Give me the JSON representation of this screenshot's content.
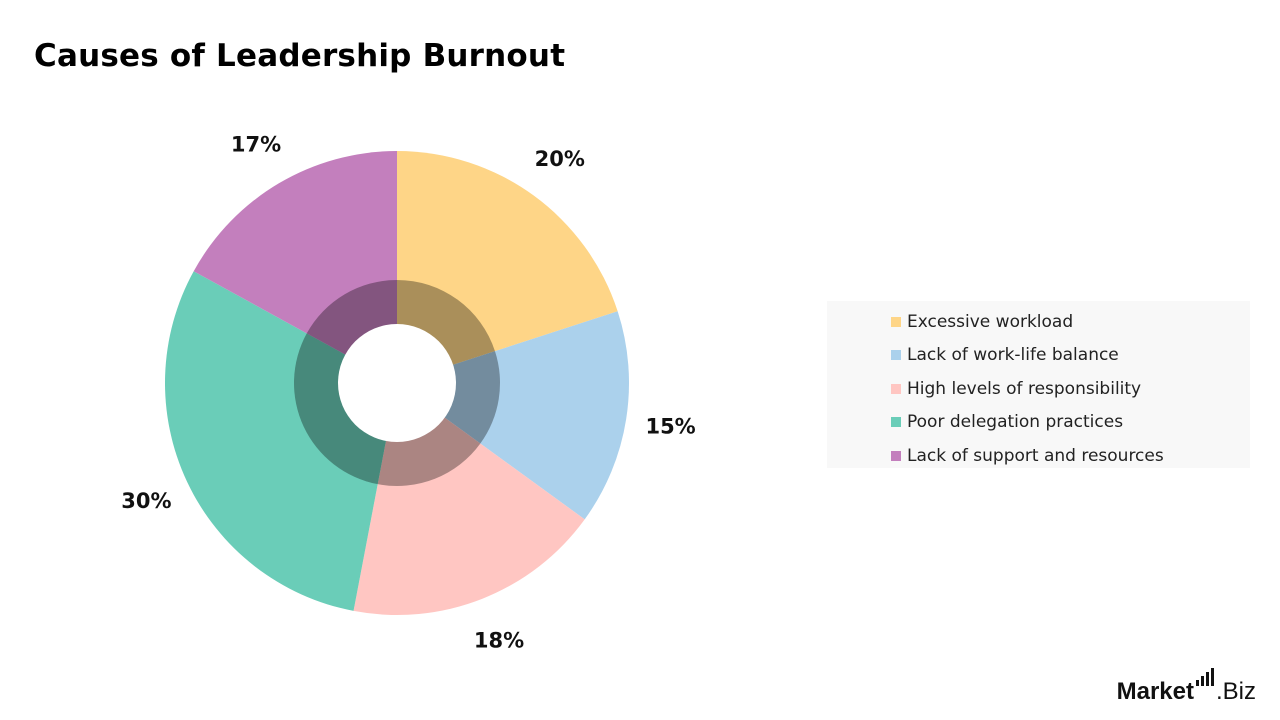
{
  "title": "Causes of Leadership Burnout",
  "chart_data": {
    "type": "pie",
    "title": "Causes of Leadership Burnout",
    "categories": [
      "Excessive workload",
      "Lack of work-life balance",
      "High levels of responsibility",
      "Poor delegation practices",
      "Lack of support and resources"
    ],
    "values": [
      20,
      15,
      18,
      30,
      17
    ],
    "labels": [
      "20%",
      "15%",
      "18%",
      "30%",
      "17%"
    ],
    "colors": [
      "#fed587",
      "#abd1ec",
      "#ffc6c2",
      "#6acdb8",
      "#c37fbd"
    ],
    "legend": "right"
  },
  "brand": {
    "name": "Market",
    "suffix": ".Biz"
  }
}
